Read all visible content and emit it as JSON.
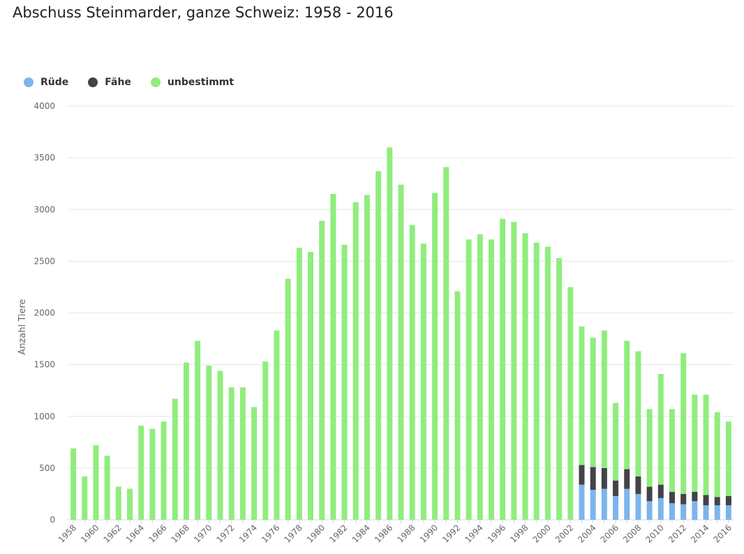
{
  "title": "Abschuss Steinmarder, ganze Schweiz: 1958 - 2016",
  "legend": [
    {
      "name": "Rüde",
      "color": "#7cb5ec"
    },
    {
      "name": "Fähe",
      "color": "#434348"
    },
    {
      "name": "unbestimmt",
      "color": "#90ed7d"
    }
  ],
  "chart_data": {
    "type": "bar",
    "stacked": true,
    "title": "Abschuss Steinmarder, ganze Schweiz: 1958 - 2016",
    "ylabel": "Anzahl Tiere",
    "xlabel": "",
    "ylim": [
      0,
      4000
    ],
    "yticks": [
      0,
      500,
      1000,
      1500,
      2000,
      2500,
      3000,
      3500,
      4000
    ],
    "grid": true,
    "legend_position": "top-left",
    "categories": [
      "1958",
      "1959",
      "1960",
      "1961",
      "1962",
      "1963",
      "1964",
      "1965",
      "1966",
      "1967",
      "1968",
      "1969",
      "1970",
      "1971",
      "1972",
      "1973",
      "1974",
      "1975",
      "1976",
      "1977",
      "1978",
      "1979",
      "1980",
      "1981",
      "1982",
      "1983",
      "1984",
      "1985",
      "1986",
      "1987",
      "1988",
      "1989",
      "1990",
      "1991",
      "1992",
      "1993",
      "1994",
      "1995",
      "1996",
      "1997",
      "1998",
      "1999",
      "2000",
      "2001",
      "2002",
      "2003",
      "2004",
      "2005",
      "2006",
      "2007",
      "2008",
      "2009",
      "2010",
      "2011",
      "2012",
      "2013",
      "2014",
      "2015",
      "2016"
    ],
    "xtick_labels": [
      "1958",
      "1960",
      "1962",
      "1964",
      "1966",
      "1968",
      "1970",
      "1972",
      "1974",
      "1976",
      "1978",
      "1980",
      "1982",
      "1984",
      "1986",
      "1988",
      "1990",
      "1992",
      "1994",
      "1996",
      "1998",
      "2000",
      "2002",
      "2004",
      "2006",
      "2008",
      "2010",
      "2012",
      "2014",
      "2016"
    ],
    "series": [
      {
        "name": "Rüde",
        "color": "#7cb5ec",
        "values": [
          0,
          0,
          0,
          0,
          0,
          0,
          0,
          0,
          0,
          0,
          0,
          0,
          0,
          0,
          0,
          0,
          0,
          0,
          0,
          0,
          0,
          0,
          0,
          0,
          0,
          0,
          0,
          0,
          0,
          0,
          0,
          0,
          0,
          0,
          0,
          0,
          0,
          0,
          0,
          0,
          0,
          0,
          0,
          0,
          0,
          340,
          290,
          300,
          230,
          300,
          250,
          180,
          210,
          160,
          150,
          180,
          140,
          140,
          140
        ]
      },
      {
        "name": "Fähe",
        "color": "#434348",
        "values": [
          0,
          0,
          0,
          0,
          0,
          0,
          0,
          0,
          0,
          0,
          0,
          0,
          0,
          0,
          0,
          0,
          0,
          0,
          0,
          0,
          0,
          0,
          0,
          0,
          0,
          0,
          0,
          0,
          0,
          0,
          0,
          0,
          0,
          0,
          0,
          0,
          0,
          0,
          0,
          0,
          0,
          0,
          0,
          0,
          0,
          190,
          220,
          200,
          150,
          190,
          170,
          140,
          130,
          110,
          100,
          90,
          100,
          80,
          90
        ]
      },
      {
        "name": "unbestimmt",
        "color": "#90ed7d",
        "values": [
          690,
          420,
          720,
          620,
          320,
          300,
          910,
          880,
          950,
          1170,
          1520,
          1730,
          1490,
          1440,
          1280,
          1280,
          1090,
          1530,
          1830,
          2330,
          2630,
          2590,
          2890,
          3150,
          2660,
          3070,
          3140,
          3370,
          3600,
          3240,
          2850,
          2670,
          3160,
          3410,
          2210,
          2710,
          2760,
          2710,
          2910,
          2880,
          2770,
          2680,
          2640,
          2530,
          2250,
          1340,
          1250,
          1330,
          750,
          1240,
          1210,
          750,
          1070,
          800,
          1360,
          940,
          970,
          820,
          720
        ]
      }
    ]
  }
}
